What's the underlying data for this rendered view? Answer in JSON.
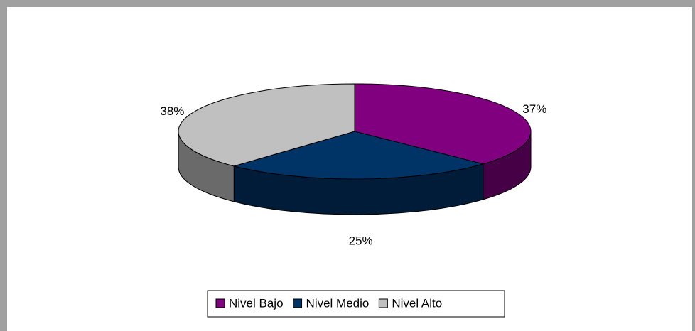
{
  "chart_data": {
    "type": "pie",
    "categories": [
      "Nivel Bajo",
      "Nivel Medio",
      "Nivel Alto"
    ],
    "values": [
      37,
      25,
      38
    ],
    "value_labels": [
      "37%",
      "25%",
      "38%"
    ],
    "colors": [
      "#800080",
      "#003366",
      "#c0c0c0"
    ],
    "legend": "bottom"
  }
}
